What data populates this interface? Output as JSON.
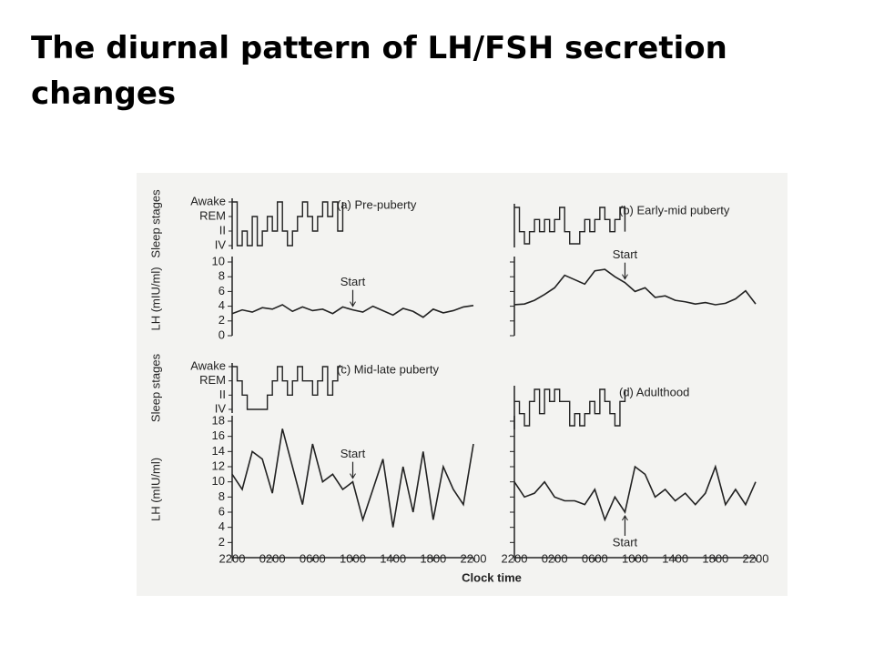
{
  "title": "The diurnal pattern of LH/FSH secretion changes",
  "figure": {
    "xlabel": "Clock time"
  },
  "chart_data": [
    {
      "type": "line",
      "title": "(a) Pre-puberty",
      "ylabel": "LH (mIU/ml)",
      "sleep_label": "Sleep stages",
      "color": "#222222",
      "sleep_ylim": [
        0,
        3
      ],
      "sleep_yticks": [
        {
          "value": 3,
          "label": "Awake"
        },
        {
          "value": 2,
          "label": "REM"
        },
        {
          "value": 1,
          "label": "II"
        },
        {
          "value": 0,
          "label": "IV"
        }
      ],
      "sleep_x": [
        0,
        0.5,
        1,
        1.5,
        2,
        2.5,
        3,
        3.5,
        4,
        4.5,
        5,
        5.5,
        6,
        6.5,
        7,
        7.5,
        8,
        8.5,
        9,
        9.5,
        10,
        10.5,
        11
      ],
      "sleep_values": [
        3,
        0,
        1,
        0,
        2,
        0,
        1,
        2,
        1,
        3,
        1,
        0,
        1,
        2,
        3,
        2,
        1,
        2,
        3,
        2,
        3,
        1,
        3
      ],
      "x": [
        0,
        1,
        2,
        3,
        4,
        5,
        6,
        7,
        8,
        9,
        10,
        11,
        12,
        13,
        14,
        15,
        16,
        17,
        18,
        19,
        20,
        21,
        22,
        23,
        24
      ],
      "values": [
        3,
        3.5,
        3.2,
        3.8,
        3.6,
        4.2,
        3.3,
        3.9,
        3.4,
        3.6,
        3.0,
        3.9,
        3.5,
        3.2,
        4.0,
        3.4,
        2.8,
        3.7,
        3.3,
        2.5,
        3.6,
        3.1,
        3.4,
        3.9,
        4.1
      ],
      "xlim": [
        0,
        24
      ],
      "ylim": [
        0,
        10
      ],
      "yticks": [
        0,
        2,
        4,
        6,
        8,
        10
      ],
      "show_ytick_labels": true,
      "annotations": [
        {
          "text": "Start",
          "x": 12
        }
      ]
    },
    {
      "type": "line",
      "title": "(b) Early-mid puberty",
      "color": "#222222",
      "sleep_ylim": [
        0,
        3
      ],
      "sleep_x": [
        0,
        0.5,
        1,
        1.5,
        2,
        2.5,
        3,
        3.5,
        4,
        4.5,
        5,
        5.5,
        6,
        6.5,
        7,
        7.5,
        8,
        8.5,
        9,
        9.5,
        10,
        10.5,
        11
      ],
      "sleep_values": [
        3,
        1,
        0,
        1,
        2,
        1,
        2,
        1,
        2,
        3,
        1,
        0,
        0,
        1,
        2,
        1,
        2,
        3,
        2,
        1,
        2,
        3,
        1
      ],
      "x": [
        0,
        1,
        2,
        3,
        4,
        5,
        6,
        7,
        8,
        9,
        10,
        11,
        12,
        13,
        14,
        15,
        16,
        17,
        18,
        19,
        20,
        21,
        22,
        23,
        24
      ],
      "values": [
        4.2,
        4.3,
        4.8,
        5.6,
        6.5,
        8.2,
        7.6,
        7.0,
        8.8,
        9.0,
        8.0,
        7.2,
        6.0,
        6.5,
        5.2,
        5.4,
        4.8,
        4.6,
        4.3,
        4.5,
        4.2,
        4.4,
        5.0,
        6.1,
        4.3
      ],
      "xlim": [
        0,
        24
      ],
      "ylim": [
        0,
        10
      ],
      "yticks": [
        0,
        2,
        4,
        6,
        8,
        10
      ],
      "show_ytick_labels": false,
      "annotations": [
        {
          "text": "Start",
          "x": 11
        }
      ]
    },
    {
      "type": "line",
      "title": "(c) Mid-late puberty",
      "ylabel": "LH (mIU/ml)",
      "sleep_label": "Sleep stages",
      "color": "#222222",
      "sleep_ylim": [
        0,
        3
      ],
      "sleep_yticks": [
        {
          "value": 3,
          "label": "Awake"
        },
        {
          "value": 2,
          "label": "REM"
        },
        {
          "value": 1,
          "label": "II"
        },
        {
          "value": 0,
          "label": "IV"
        }
      ],
      "sleep_x": [
        0,
        0.5,
        1,
        1.5,
        2,
        2.5,
        3,
        3.5,
        4,
        4.5,
        5,
        5.5,
        6,
        6.5,
        7,
        7.5,
        8,
        8.5,
        9,
        9.5,
        10,
        10.5,
        11
      ],
      "sleep_values": [
        3,
        2,
        1,
        0,
        0,
        0,
        0,
        1,
        2,
        3,
        2,
        1,
        2,
        3,
        2,
        2,
        1,
        2,
        3,
        1,
        2,
        3,
        3
      ],
      "x": [
        0,
        1,
        2,
        3,
        4,
        5,
        6,
        7,
        8,
        9,
        10,
        11,
        12,
        13,
        14,
        15,
        16,
        17,
        18,
        19,
        20,
        21,
        22,
        23,
        24
      ],
      "values": [
        11,
        9,
        14,
        13,
        8.5,
        17,
        12,
        7,
        15,
        10,
        11,
        9,
        10,
        5,
        9,
        13,
        4,
        12,
        6,
        14,
        5,
        12,
        9,
        7,
        15
      ],
      "xlim": [
        0,
        24
      ],
      "ylim": [
        0,
        18
      ],
      "yticks": [
        2,
        4,
        6,
        8,
        10,
        12,
        14,
        16,
        18
      ],
      "show_ytick_labels": true,
      "xticks": [
        {
          "value": 0,
          "label": "2200"
        },
        {
          "value": 4,
          "label": "0200"
        },
        {
          "value": 8,
          "label": "0600"
        },
        {
          "value": 12,
          "label": "1000"
        },
        {
          "value": 16,
          "label": "1400"
        },
        {
          "value": 20,
          "label": "1800"
        },
        {
          "value": 24,
          "label": "2200"
        }
      ],
      "annotations": [
        {
          "text": "Start",
          "x": 12
        }
      ]
    },
    {
      "type": "line",
      "title": "(d) Adulthood",
      "color": "#222222",
      "sleep_ylim": [
        0,
        3
      ],
      "sleep_x": [
        0,
        0.5,
        1,
        1.5,
        2,
        2.5,
        3,
        3.5,
        4,
        4.5,
        5,
        5.5,
        6,
        6.5,
        7,
        7.5,
        8,
        8.5,
        9,
        9.5,
        10,
        10.5,
        11
      ],
      "sleep_values": [
        2,
        1,
        0,
        2,
        3,
        1,
        3,
        2,
        3,
        2,
        2,
        0,
        1,
        0,
        1,
        2,
        1,
        3,
        2,
        1,
        0,
        2,
        3
      ],
      "x": [
        0,
        1,
        2,
        3,
        4,
        5,
        6,
        7,
        8,
        9,
        10,
        11,
        12,
        13,
        14,
        15,
        16,
        17,
        18,
        19,
        20,
        21,
        22,
        23,
        24
      ],
      "values": [
        10,
        8,
        8.5,
        10,
        8,
        7.5,
        7.5,
        7,
        9,
        5,
        8,
        6,
        12,
        11,
        8,
        9,
        7.5,
        8.5,
        7,
        8.5,
        12,
        7,
        9,
        7,
        10
      ],
      "xlim": [
        0,
        24
      ],
      "ylim": [
        0,
        18
      ],
      "yticks": [
        2,
        4,
        6,
        8,
        10,
        12,
        14,
        16,
        18
      ],
      "show_ytick_labels": false,
      "xticks": [
        {
          "value": 0,
          "label": "2200"
        },
        {
          "value": 4,
          "label": "0200"
        },
        {
          "value": 8,
          "label": "0600"
        },
        {
          "value": 12,
          "label": "1000"
        },
        {
          "value": 16,
          "label": "1400"
        },
        {
          "value": 20,
          "label": "1800"
        },
        {
          "value": 24,
          "label": "2200"
        }
      ],
      "annotations": [
        {
          "text": "Start",
          "x": 11
        }
      ]
    }
  ]
}
